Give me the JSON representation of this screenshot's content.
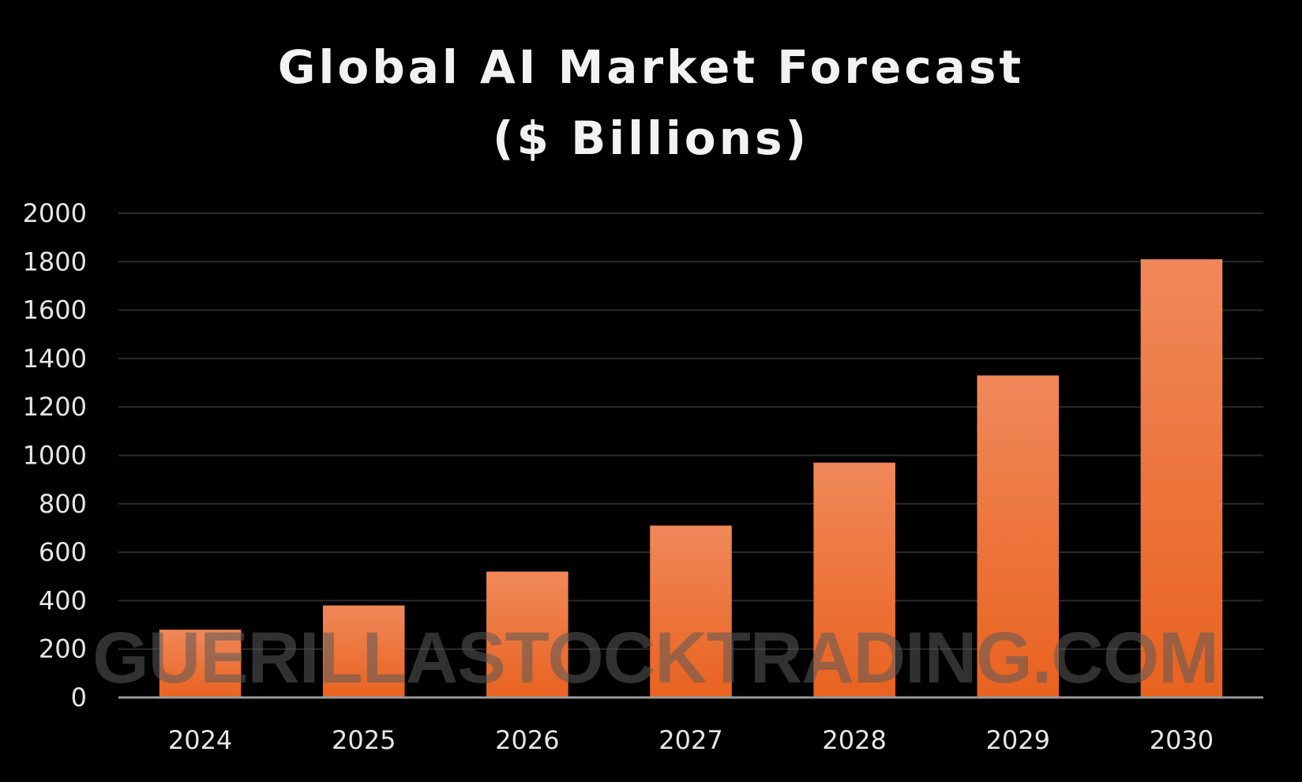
{
  "chart_data": {
    "type": "bar",
    "title_line1": "Global AI Market Forecast",
    "title_line2": "($ Billions)",
    "categories": [
      "2024",
      "2025",
      "2026",
      "2027",
      "2028",
      "2029",
      "2030"
    ],
    "values": [
      280,
      380,
      520,
      710,
      970,
      1330,
      1810
    ],
    "ylim": [
      0,
      2000
    ],
    "yticks": [
      "0",
      "200",
      "400",
      "600",
      "800",
      "1000",
      "1200",
      "1400",
      "1600",
      "1800",
      "2000"
    ],
    "grid": true,
    "bar_color_top": "#f0885a",
    "bar_color_bottom": "#e9621f",
    "background": "#000000",
    "watermark": "GUERILLASTOCKTRADING.COM"
  }
}
